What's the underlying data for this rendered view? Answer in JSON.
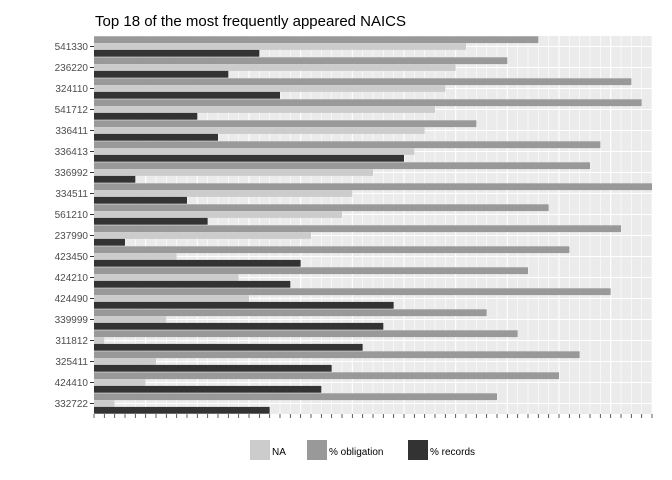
{
  "chart_data": {
    "type": "bar",
    "orientation": "horizontal",
    "title": "Top 18 of the most frequently appeared NAICS",
    "xlabel": "",
    "ylabel": "",
    "grid": true,
    "legend_position": "bottom",
    "categories": [
      "541330",
      "236220",
      "324110",
      "541712",
      "336411",
      "336413",
      "336992",
      "334511",
      "561210",
      "237990",
      "423450",
      "424210",
      "424490",
      "339999",
      "311812",
      "325411",
      "424410",
      "332722"
    ],
    "x_tick_labels_note": "",
    "xlim": [
      0,
      108
    ],
    "series": [
      {
        "name": "NA",
        "color": "#cccccc",
        "values": [
          72,
          70,
          68,
          66,
          64,
          62,
          54,
          50,
          48,
          42,
          16,
          28,
          30,
          14,
          2,
          12,
          10,
          4
        ]
      },
      {
        "name": "% obligation",
        "color": "#999999",
        "values": [
          86,
          80,
          104,
          106,
          74,
          98,
          96,
          108,
          88,
          102,
          92,
          84,
          100,
          76,
          82,
          94,
          90,
          78
        ]
      },
      {
        "name": "% records",
        "color": "#333333",
        "values": [
          32,
          26,
          36,
          20,
          24,
          60,
          8,
          18,
          22,
          6,
          40,
          38,
          58,
          56,
          52,
          46,
          44,
          34
        ]
      }
    ],
    "legend": {
      "items": [
        "NA",
        "% obligation",
        "% records"
      ]
    }
  }
}
